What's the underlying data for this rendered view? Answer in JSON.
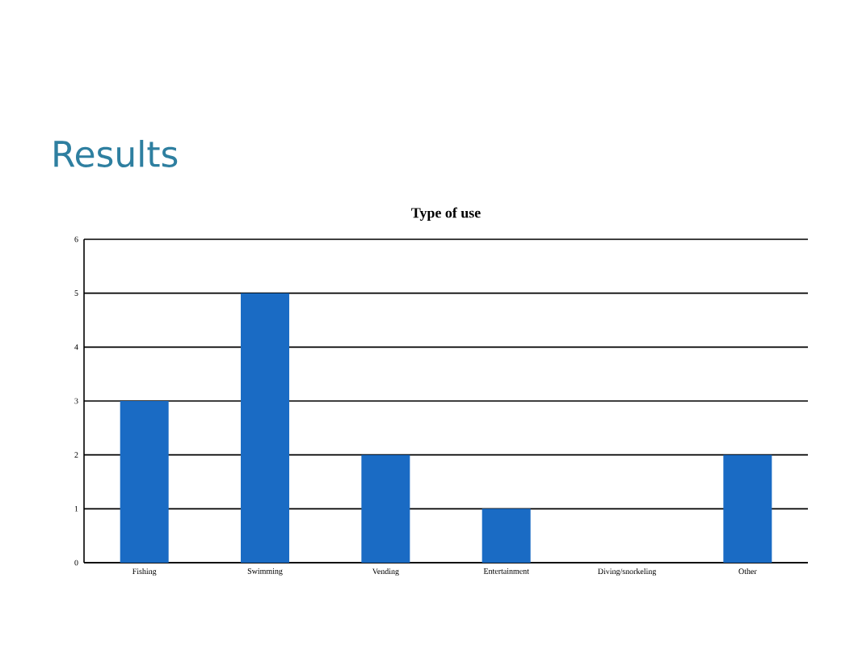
{
  "chart_data": {
    "type": "bar",
    "title": "Results",
    "subtitle": "Type of use",
    "categories": [
      "Fishing",
      "Swimming",
      "Vending",
      "Entertainment",
      "Diving/snorkeling",
      "Other"
    ],
    "values": [
      3,
      5,
      2,
      1,
      0,
      2
    ],
    "color": "#1a6bc4",
    "ylim": [
      0,
      6
    ],
    "yticks": [
      0,
      1,
      2,
      3,
      4,
      5,
      6
    ],
    "grid": "y"
  }
}
